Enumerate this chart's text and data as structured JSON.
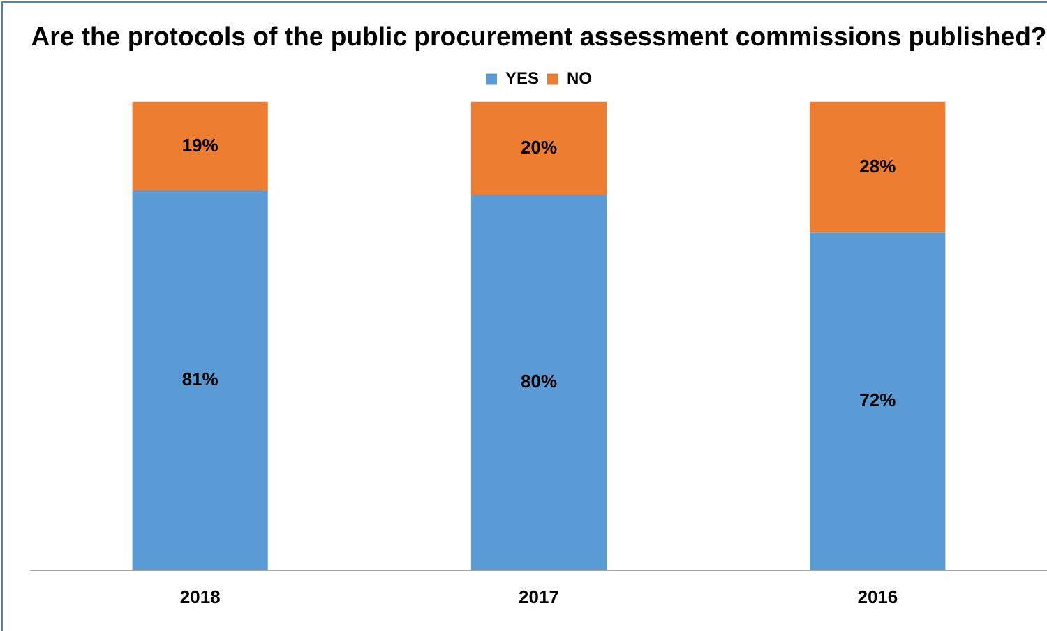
{
  "chart_data": {
    "type": "bar",
    "title": "Are the protocols of the public procurement assessment commissions published?",
    "categories": [
      "2018",
      "2017",
      "2016"
    ],
    "stacked": true,
    "ylim": [
      0,
      100
    ],
    "tick_labels": "x",
    "grid": false,
    "legend": "top",
    "series": [
      {
        "name": "YES",
        "color": "#5b9bd5",
        "values": [
          81,
          80,
          72
        ],
        "value_labels": [
          "81%",
          "80%",
          "72%"
        ]
      },
      {
        "name": "NO",
        "color": "#ed7d31",
        "values": [
          19,
          20,
          28
        ],
        "value_labels": [
          "19%",
          "20%",
          "28%"
        ]
      }
    ]
  }
}
